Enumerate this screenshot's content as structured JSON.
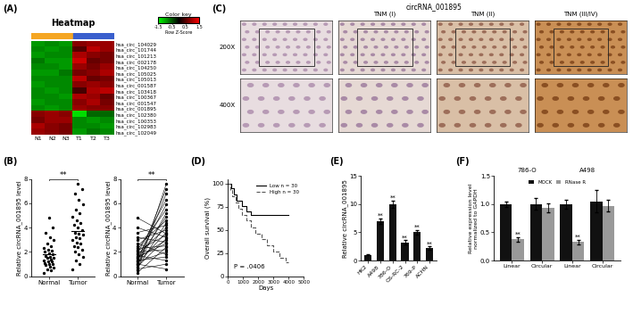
{
  "chart_data": [
    {
      "type": "heatmap",
      "label": "(A)",
      "title": "Heatmap",
      "columns": [
        "N1",
        "N2",
        "N3",
        "T1",
        "T2",
        "T3"
      ],
      "rows": [
        "hsa_circ_104029",
        "hsa_circ_101744",
        "hsa_circ_101213",
        "hsa_circ_002178",
        "hsa_circ_104250",
        "hsa_circ_105025",
        "hsa_circ_105013",
        "hsa_circ_001587",
        "hsa_circ_103418",
        "hsa_circ_100367",
        "hsa_circ_001547",
        "hsa_circ_001895",
        "hsa_circ_102380",
        "hsa_circ_100353",
        "hsa_circ_102983",
        "hsa_circ_102049"
      ],
      "cells": [
        [
          -0.9,
          -0.8,
          -0.9,
          0.8,
          0.9,
          0.9
        ],
        [
          -0.8,
          -0.9,
          -0.8,
          0.5,
          1.1,
          0.9
        ],
        [
          -0.9,
          -0.8,
          -0.8,
          1.0,
          0.8,
          0.7
        ],
        [
          -0.7,
          -0.9,
          -0.9,
          1.2,
          0.6,
          0.7
        ],
        [
          -0.8,
          -0.8,
          -0.9,
          0.9,
          0.7,
          0.9
        ],
        [
          -0.9,
          -0.9,
          -0.7,
          0.7,
          0.8,
          1.0
        ],
        [
          -0.8,
          -0.8,
          -0.8,
          1.1,
          0.6,
          0.7
        ],
        [
          -0.9,
          -0.8,
          -0.8,
          0.8,
          0.9,
          0.8
        ],
        [
          -0.8,
          -0.9,
          -0.8,
          0.4,
          1.0,
          1.1
        ],
        [
          -0.8,
          -0.8,
          -0.9,
          1.0,
          0.9,
          0.6
        ],
        [
          -0.9,
          -0.8,
          -0.8,
          0.8,
          1.0,
          0.7
        ],
        [
          -0.8,
          -0.9,
          -0.8,
          0.9,
          0.8,
          0.8
        ],
        [
          0.8,
          0.9,
          0.8,
          -1.3,
          -0.6,
          -0.6
        ],
        [
          0.7,
          0.9,
          0.9,
          -0.8,
          -0.9,
          -0.8
        ],
        [
          1.0,
          0.8,
          0.7,
          -0.8,
          -0.8,
          -0.9
        ],
        [
          0.9,
          0.8,
          0.7,
          -0.9,
          -0.7,
          -0.8
        ]
      ],
      "color_key_title": "Color key",
      "color_key_label": "Row Z-Score",
      "color_range": [
        -1.5,
        1.5
      ],
      "color_ticks": [
        -1.5,
        -0.5,
        0.5,
        1.5
      ]
    },
    {
      "type": "dot",
      "label": "(B)",
      "ylabel": "Relative circRNA_001895 level",
      "categories": [
        "Normal",
        "Tumor"
      ],
      "significance": "**",
      "values": [
        [
          0.3,
          0.5,
          0.6,
          0.7,
          0.8,
          0.9,
          1.0,
          1.0,
          1.1,
          1.2,
          1.2,
          1.3,
          1.4,
          1.5,
          1.5,
          1.6,
          1.7,
          1.8,
          1.9,
          2.0,
          2.1,
          2.2,
          2.3,
          2.5,
          2.7,
          3.0,
          3.2,
          3.6,
          4.0,
          4.8
        ],
        [
          0.6,
          1.0,
          1.3,
          1.6,
          1.8,
          2.0,
          2.2,
          2.4,
          2.5,
          2.7,
          2.8,
          3.0,
          3.1,
          3.2,
          3.4,
          3.5,
          3.6,
          3.8,
          4.0,
          4.2,
          4.4,
          4.6,
          4.9,
          5.2,
          5.5,
          5.9,
          6.3,
          6.8,
          7.2,
          7.6
        ]
      ],
      "ylim": [
        0,
        8
      ],
      "yticks": [
        0,
        2,
        4,
        6,
        8
      ]
    },
    {
      "type": "paired",
      "ylabel": "Relative circRNA_001895 level",
      "categories": [
        "Normal",
        "Tumor"
      ],
      "significance": "**",
      "values": [
        [
          0.3,
          0.5,
          0.6,
          0.7,
          0.8,
          0.9,
          1.0,
          1.0,
          1.1,
          1.2,
          1.2,
          1.3,
          1.4,
          1.5,
          1.5,
          1.6,
          1.7,
          1.8,
          1.9,
          2.0,
          2.1,
          2.2,
          2.3,
          2.5,
          2.7,
          3.0,
          3.2,
          3.6,
          4.0,
          4.8
        ],
        [
          2.4,
          7.6,
          1.0,
          4.4,
          3.1,
          6.8,
          0.6,
          5.2,
          3.6,
          2.0,
          7.2,
          1.6,
          4.9,
          3.0,
          5.9,
          2.7,
          1.3,
          4.0,
          6.3,
          2.2,
          3.4,
          5.5,
          2.5,
          4.6,
          1.8,
          3.8,
          2.8,
          4.2,
          3.2,
          3.5
        ]
      ],
      "ylim": [
        0,
        8
      ],
      "yticks": [
        0,
        2,
        4,
        6,
        8
      ]
    },
    {
      "type": "image_grid",
      "label": "(C)",
      "title": "circRNA_001895",
      "columns": [
        "TNM (I)",
        "TNM (II)",
        "TNM (III/IV)"
      ],
      "first_column": null,
      "rows": [
        "200X",
        "400X"
      ]
    },
    {
      "type": "line",
      "label": "(D)",
      "xlabel": "Days",
      "ylabel": "Overall survival (%)",
      "annotation": "P = .0406",
      "legend": "upper right",
      "series": [
        {
          "name": "Low n = 30",
          "color": "#000000",
          "line_style": "solid",
          "x": [
            0,
            200,
            400,
            600,
            900,
            1200,
            1500,
            4000
          ],
          "values": [
            100,
            95,
            88,
            82,
            76,
            70,
            66,
            66
          ]
        },
        {
          "name": "High n = 30",
          "color": "#555555",
          "line_style": "dashed",
          "x": [
            0,
            150,
            300,
            500,
            700,
            900,
            1200,
            1500,
            1800,
            2200,
            2600,
            3000,
            3400,
            3800,
            4000
          ],
          "values": [
            100,
            93,
            86,
            80,
            73,
            66,
            60,
            53,
            46,
            40,
            33,
            27,
            20,
            15,
            15
          ]
        }
      ],
      "xlim": [
        0,
        5000
      ],
      "xticks": [
        0,
        1000,
        2000,
        3000,
        4000,
        5000
      ],
      "ylim": [
        0,
        105
      ],
      "yticks": [
        0,
        25,
        50,
        75,
        100
      ]
    },
    {
      "type": "bar",
      "label": "(E)",
      "ylabel": "Relative circRNA_001895",
      "categories": [
        "HK2",
        "A498",
        "786-O",
        "OS-RC-2",
        "769-P",
        "ACHN"
      ],
      "values": [
        1,
        7,
        10,
        3.2,
        5,
        2.2
      ],
      "errors": [
        0.1,
        0.5,
        0.6,
        0.4,
        0.4,
        0.3
      ],
      "significance": [
        null,
        "**",
        "**",
        "**",
        "**",
        "**"
      ],
      "color": "#111111",
      "ylim": [
        0,
        15
      ],
      "yticks": [
        0,
        5,
        10,
        15
      ]
    },
    {
      "type": "bar",
      "label": "(F)",
      "ylabel": "Relative expression level\nnormalized to GAPDH",
      "categories": [
        "Linear",
        "Circular",
        "Linear",
        "Circular"
      ],
      "groups": [
        "786-O",
        "A498"
      ],
      "legend": "upper center",
      "series": [
        {
          "name": "MOCK",
          "color": "#111111",
          "values": [
            1.0,
            1.0,
            1.0,
            1.05
          ],
          "errors": [
            0.05,
            0.1,
            0.08,
            0.2
          ],
          "significance": [
            null,
            null,
            null,
            null
          ]
        },
        {
          "name": "RNase R",
          "color": "#999999",
          "values": [
            0.38,
            0.93,
            0.33,
            0.97
          ],
          "errors": [
            0.04,
            0.08,
            0.04,
            0.1
          ],
          "significance": [
            "**",
            null,
            "**",
            null
          ]
        }
      ],
      "ylim": [
        0,
        1.5
      ],
      "yticks": [
        {
          "value": 0,
          "label": "0.0"
        },
        0.5,
        {
          "value": 1,
          "label": "1.0"
        },
        1.5
      ]
    }
  ]
}
